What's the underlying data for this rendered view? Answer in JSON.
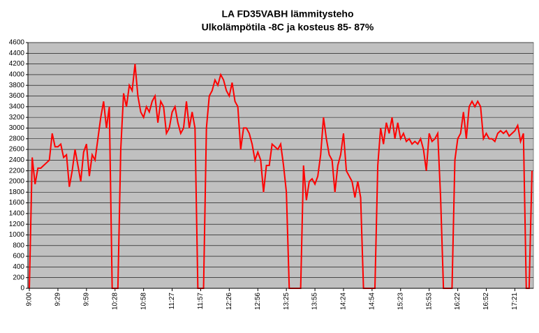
{
  "chart_data": {
    "type": "line",
    "title": "LA FD35VABH lämmitysteho",
    "subtitle": "Ulkolämpötila  -8C ja kosteus 85- 87%",
    "categories": [
      "9:00",
      null,
      null,
      null,
      null,
      null,
      null,
      null,
      null,
      null,
      "9:29",
      null,
      null,
      null,
      null,
      null,
      null,
      null,
      null,
      null,
      "9:59",
      null,
      null,
      null,
      null,
      null,
      null,
      null,
      null,
      null,
      "10:28",
      null,
      null,
      null,
      null,
      null,
      null,
      null,
      null,
      null,
      "10:58",
      null,
      null,
      null,
      null,
      null,
      null,
      null,
      null,
      null,
      "11:27",
      null,
      null,
      null,
      null,
      null,
      null,
      null,
      null,
      null,
      "11:57",
      null,
      null,
      null,
      null,
      null,
      null,
      null,
      null,
      null,
      "12:26",
      null,
      null,
      null,
      null,
      null,
      null,
      null,
      null,
      null,
      "12:56",
      null,
      null,
      null,
      null,
      null,
      null,
      null,
      null,
      null,
      "13:25",
      null,
      null,
      null,
      null,
      null,
      null,
      null,
      null,
      null,
      "13:55",
      null,
      null,
      null,
      null,
      null,
      null,
      null,
      null,
      null,
      "14:24",
      null,
      null,
      null,
      null,
      null,
      null,
      null,
      null,
      null,
      "14:54",
      null,
      null,
      null,
      null,
      null,
      null,
      null,
      null,
      null,
      "15:23",
      null,
      null,
      null,
      null,
      null,
      null,
      null,
      null,
      null,
      "15:53",
      null,
      null,
      null,
      null,
      null,
      null,
      null,
      null,
      null,
      "16:22",
      null,
      null,
      null,
      null,
      null,
      null,
      null,
      null,
      null,
      "16:52",
      null,
      null,
      null,
      null,
      null,
      null,
      null,
      null,
      null,
      "17:21",
      null,
      null,
      null,
      null,
      null,
      null
    ],
    "values": [
      0,
      2450,
      1950,
      2250,
      2250,
      2300,
      2350,
      2400,
      2900,
      2650,
      2650,
      2700,
      2450,
      2500,
      1900,
      2200,
      2600,
      2300,
      2000,
      2550,
      2700,
      2100,
      2500,
      2400,
      2800,
      3200,
      3500,
      3000,
      3400,
      0,
      0,
      0,
      2600,
      3650,
      3400,
      3800,
      3700,
      4200,
      3600,
      3300,
      3200,
      3400,
      3300,
      3500,
      3600,
      3100,
      3500,
      3400,
      2900,
      3000,
      3300,
      3400,
      3100,
      2900,
      3000,
      3500,
      3000,
      3300,
      3000,
      0,
      0,
      0,
      3000,
      3600,
      3700,
      3900,
      3800,
      4000,
      3900,
      3700,
      3600,
      3850,
      3500,
      3400,
      2600,
      3000,
      3000,
      2900,
      2700,
      2400,
      2550,
      2400,
      1800,
      2300,
      2300,
      2700,
      2650,
      2600,
      2700,
      2300,
      1800,
      0,
      0,
      0,
      0,
      0,
      2300,
      1650,
      2000,
      2050,
      1950,
      2100,
      2500,
      3200,
      2800,
      2500,
      2400,
      1800,
      2300,
      2500,
      2900,
      2200,
      2100,
      2000,
      1700,
      2000,
      1700,
      0,
      0,
      0,
      0,
      0,
      2300,
      3000,
      2700,
      3100,
      2900,
      3200,
      2800,
      3100,
      2800,
      2900,
      2750,
      2800,
      2700,
      2750,
      2700,
      2800,
      2600,
      2200,
      2900,
      2750,
      2800,
      2900,
      1700,
      0,
      0,
      0,
      0,
      2400,
      2800,
      2900,
      3300,
      2800,
      3400,
      3500,
      3400,
      3500,
      3400,
      2800,
      2900,
      2800,
      2800,
      2750,
      2900,
      2950,
      2900,
      2950,
      2850,
      2900,
      2950,
      3050,
      2750,
      2900,
      0,
      0,
      2200
    ],
    "color": "#ff0000",
    "ylim": [
      0,
      4600
    ],
    "yticks": [
      0,
      200,
      400,
      600,
      800,
      1000,
      1200,
      1400,
      1600,
      1800,
      2000,
      2200,
      2400,
      2600,
      2800,
      3000,
      3200,
      3400,
      3600,
      3800,
      4000,
      4200,
      4400,
      4600
    ],
    "grid": true
  }
}
